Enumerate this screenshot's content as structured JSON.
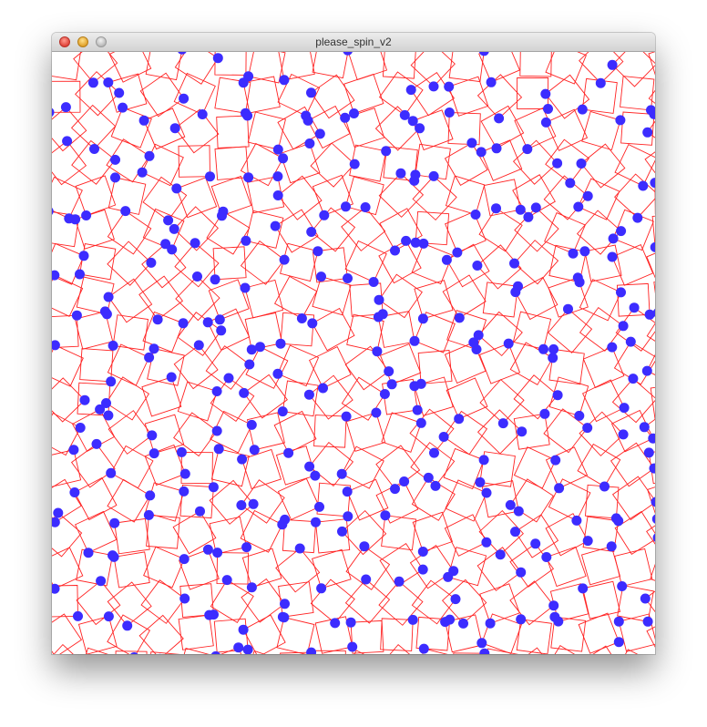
{
  "window": {
    "title": "please_spin_v2",
    "buttons": [
      "close",
      "minimize",
      "zoom"
    ]
  },
  "sketch": {
    "shape_color": "#ff2222",
    "dot_color": "#3c2cff",
    "background": "#ffffff",
    "shape": "rotating-square-with-dot"
  }
}
